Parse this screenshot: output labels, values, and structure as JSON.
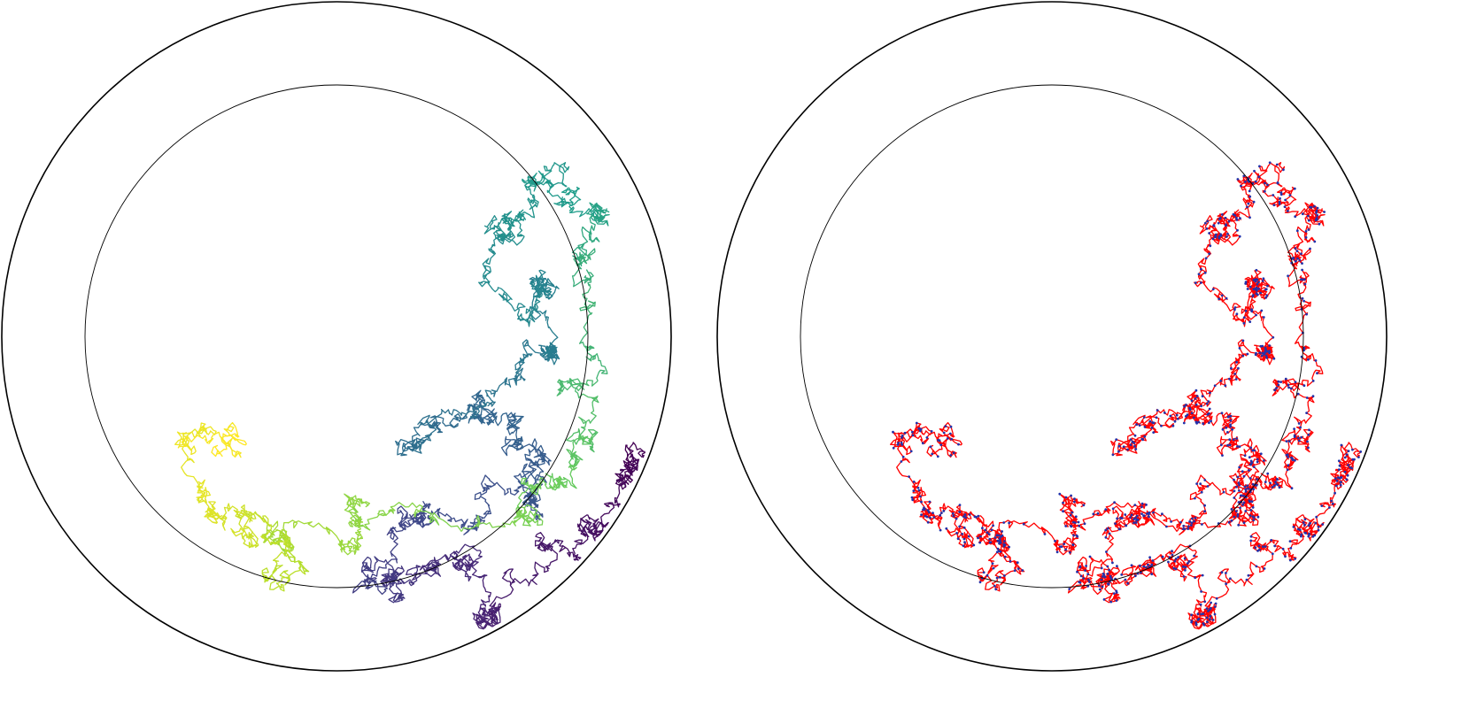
{
  "figure": {
    "panel_count": 2,
    "background": "#ffffff"
  },
  "panels": [
    {
      "name": "trajectory-colored-by-time",
      "style": "colormap",
      "colormap": "viridis",
      "outer_circle_color": "#000000",
      "inner_circle_color": "#000000"
    },
    {
      "name": "trajectory-with-step-markers",
      "style": "line-with-markers",
      "line_color": "#ff0000",
      "marker_color": "#2233aa",
      "outer_circle_color": "#000000",
      "inner_circle_color": "#000000"
    }
  ],
  "trajectory": {
    "waypoints": [
      [
        0.96,
        -0.35
      ],
      [
        0.88,
        -0.4
      ],
      [
        0.8,
        -0.58
      ],
      [
        0.62,
        -0.62
      ],
      [
        0.47,
        -0.85
      ],
      [
        0.4,
        -0.68
      ],
      [
        0.3,
        -0.7
      ],
      [
        0.18,
        -0.78
      ],
      [
        0.1,
        -0.75
      ],
      [
        0.25,
        -0.55
      ],
      [
        0.45,
        -0.52
      ],
      [
        0.58,
        -0.48
      ],
      [
        0.6,
        -0.35
      ],
      [
        0.55,
        -0.25
      ],
      [
        0.4,
        -0.22
      ],
      [
        0.2,
        -0.34
      ],
      [
        0.55,
        -0.12
      ],
      [
        0.65,
        -0.05
      ],
      [
        0.62,
        0.15
      ],
      [
        0.55,
        0.05
      ],
      [
        0.5,
        0.3
      ],
      [
        0.58,
        0.4
      ],
      [
        0.62,
        0.48
      ],
      [
        0.78,
        0.35
      ],
      [
        0.73,
        0.22
      ],
      [
        0.72,
        -0.15
      ],
      [
        0.75,
        -0.32
      ],
      [
        0.65,
        -0.45
      ],
      [
        0.55,
        -0.55
      ],
      [
        0.05,
        -0.5
      ],
      [
        0.02,
        -0.62
      ],
      [
        -0.15,
        -0.6
      ],
      [
        -0.2,
        -0.72
      ],
      [
        -0.25,
        -0.6
      ],
      [
        -0.38,
        -0.55
      ],
      [
        -0.45,
        -0.3
      ],
      [
        -0.35,
        -0.35
      ]
    ]
  }
}
